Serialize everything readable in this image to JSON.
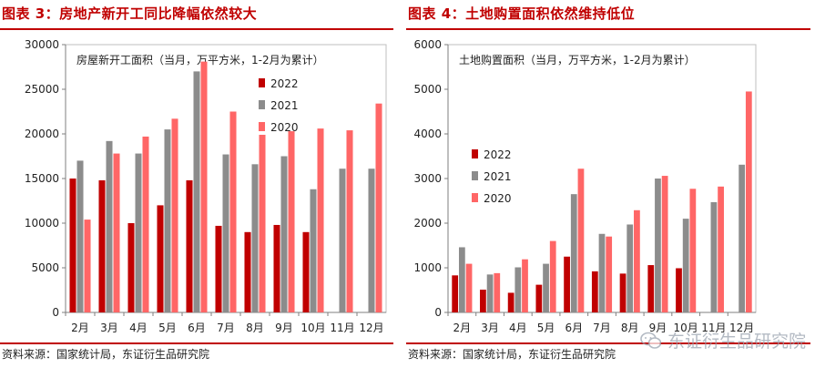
{
  "left": {
    "title": "图表 3：房地产新开工同比降幅依然较大",
    "source": "资料来源：国家统计局，东证衍生品研究院"
  },
  "right": {
    "title": "图表 4：土地购置面积依然维持低位",
    "source": "资料来源：国家统计局，东证衍生品研究院"
  },
  "watermark": {
    "text": "东证衍生品研究院"
  },
  "chart_data": [
    {
      "type": "bar",
      "title": "房屋新开工面积（当月，万平方米，1-2月为累计）",
      "xlabel": "",
      "ylabel": "",
      "categories": [
        "2月",
        "3月",
        "4月",
        "5月",
        "6月",
        "7月",
        "8月",
        "9月",
        "10月",
        "11月",
        "12月"
      ],
      "ylim": [
        0,
        30000
      ],
      "yticks": [
        0,
        5000,
        10000,
        15000,
        20000,
        25000,
        30000
      ],
      "legend_position": "top-right",
      "grid": false,
      "series": [
        {
          "name": "2022",
          "color": "#c00000",
          "values": [
            15000,
            14800,
            10000,
            12000,
            14800,
            9700,
            9000,
            9800,
            9000,
            null,
            null
          ]
        },
        {
          "name": "2021",
          "color": "#8c8c8c",
          "values": [
            17000,
            19200,
            17800,
            20500,
            27000,
            17700,
            16600,
            17500,
            13800,
            16100,
            16100
          ]
        },
        {
          "name": "2020",
          "color": "#ff6666",
          "values": [
            10400,
            17800,
            19700,
            21700,
            28100,
            22500,
            19900,
            20300,
            20600,
            20400,
            23400
          ]
        }
      ]
    },
    {
      "type": "bar",
      "title": "土地购置面积（当月，万平方米，1-2月为累计）",
      "xlabel": "",
      "ylabel": "",
      "categories": [
        "2月",
        "3月",
        "4月",
        "5月",
        "6月",
        "7月",
        "8月",
        "9月",
        "10月",
        "11月",
        "12月"
      ],
      "ylim": [
        0,
        6000
      ],
      "yticks": [
        0,
        1000,
        2000,
        3000,
        4000,
        5000,
        6000
      ],
      "legend_position": "middle-left",
      "grid": false,
      "series": [
        {
          "name": "2022",
          "color": "#c00000",
          "values": [
            830,
            510,
            440,
            620,
            1250,
            920,
            870,
            1060,
            990,
            null,
            null
          ]
        },
        {
          "name": "2021",
          "color": "#8c8c8c",
          "values": [
            1460,
            850,
            1010,
            1090,
            2650,
            1760,
            1970,
            3000,
            2100,
            2470,
            3310
          ]
        },
        {
          "name": "2020",
          "color": "#ff6666",
          "values": [
            1090,
            880,
            1190,
            1600,
            3220,
            1700,
            2290,
            3060,
            2770,
            2820,
            4950
          ]
        }
      ]
    }
  ]
}
